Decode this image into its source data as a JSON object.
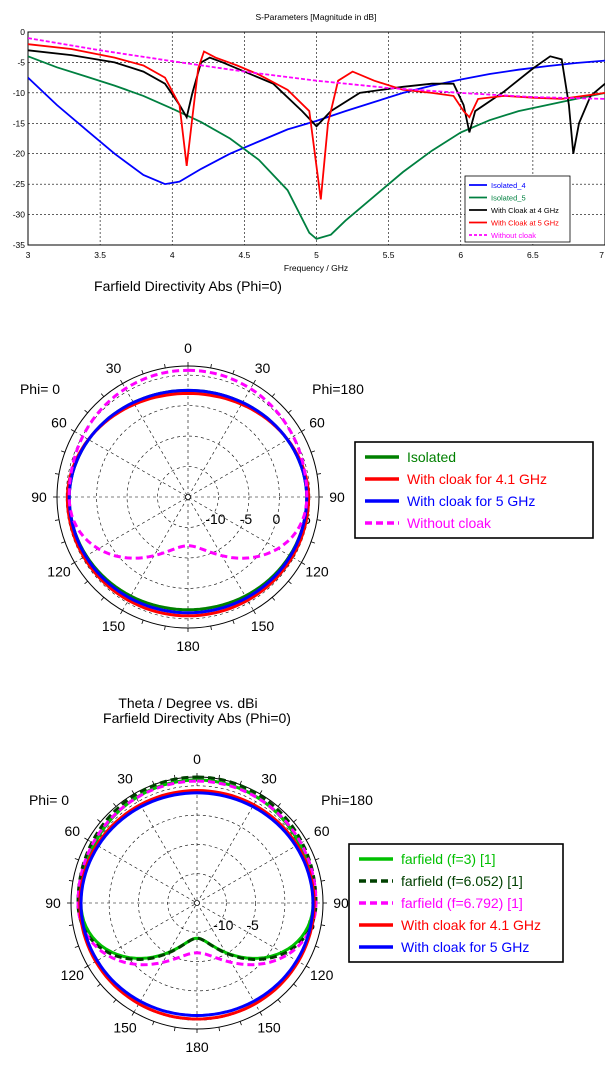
{
  "sparams": {
    "title": "S-Parameters [Magnitude in dB]",
    "xlabel": "Frequency / GHz",
    "chart_data": {
      "type": "line",
      "title": "S-Parameters [Magnitude in dB]",
      "xlabel": "Frequency / GHz",
      "ylabel": "",
      "xlim": [
        3,
        7
      ],
      "ylim": [
        -35,
        0
      ],
      "x_ticks": [
        "3",
        "3.5",
        "4",
        "4.5",
        "5",
        "5.5",
        "6",
        "6.5",
        "7"
      ],
      "y_ticks": [
        "0",
        "-5",
        "-10",
        "-15",
        "-20",
        "-25",
        "-30",
        "-35"
      ],
      "grid": true,
      "legend_position": "bottom-right",
      "series": [
        {
          "name": "Isolated_4",
          "color": "#0000ff",
          "dash": "solid",
          "points": [
            [
              3,
              -7.5
            ],
            [
              3.2,
              -12
            ],
            [
              3.4,
              -16
            ],
            [
              3.6,
              -20
            ],
            [
              3.8,
              -23.5
            ],
            [
              3.95,
              -25
            ],
            [
              4.05,
              -24.6
            ],
            [
              4.2,
              -22.5
            ],
            [
              4.4,
              -20
            ],
            [
              4.6,
              -18
            ],
            [
              4.8,
              -16
            ],
            [
              5.0,
              -14.6
            ],
            [
              5.2,
              -13
            ],
            [
              5.4,
              -11.5
            ],
            [
              5.6,
              -10
            ],
            [
              5.8,
              -8.8
            ],
            [
              6.0,
              -7.8
            ],
            [
              6.2,
              -6.9
            ],
            [
              6.4,
              -6.2
            ],
            [
              6.6,
              -5.6
            ],
            [
              6.8,
              -5.1
            ],
            [
              7.0,
              -4.7
            ]
          ]
        },
        {
          "name": "Isolated_5",
          "color": "#008040",
          "dash": "solid",
          "points": [
            [
              3,
              -4
            ],
            [
              3.2,
              -5.8
            ],
            [
              3.4,
              -7.3
            ],
            [
              3.6,
              -8.8
            ],
            [
              3.8,
              -10.5
            ],
            [
              4.0,
              -12.6
            ],
            [
              4.2,
              -14.8
            ],
            [
              4.4,
              -17.5
            ],
            [
              4.6,
              -21
            ],
            [
              4.8,
              -26
            ],
            [
              4.95,
              -33
            ],
            [
              5.0,
              -34
            ],
            [
              5.1,
              -33.3
            ],
            [
              5.2,
              -31
            ],
            [
              5.4,
              -27
            ],
            [
              5.6,
              -23
            ],
            [
              5.8,
              -19.5
            ],
            [
              6.0,
              -16.5
            ],
            [
              6.2,
              -14.5
            ],
            [
              6.4,
              -13
            ],
            [
              6.6,
              -12
            ],
            [
              6.8,
              -11
            ],
            [
              7.0,
              -10
            ]
          ]
        },
        {
          "name": "With Cloak at 4 GHz",
          "color": "#000000",
          "dash": "solid",
          "points": [
            [
              3,
              -3
            ],
            [
              3.3,
              -3.8
            ],
            [
              3.6,
              -5
            ],
            [
              3.8,
              -6.5
            ],
            [
              3.95,
              -8.5
            ],
            [
              4.05,
              -12
            ],
            [
              4.1,
              -14
            ],
            [
              4.14,
              -10
            ],
            [
              4.2,
              -5
            ],
            [
              4.26,
              -4.2
            ],
            [
              4.35,
              -5
            ],
            [
              4.5,
              -6.5
            ],
            [
              4.7,
              -8.5
            ],
            [
              4.9,
              -13
            ],
            [
              5.0,
              -15.5
            ],
            [
              5.1,
              -13
            ],
            [
              5.3,
              -10
            ],
            [
              5.6,
              -9
            ],
            [
              5.8,
              -8.5
            ],
            [
              5.95,
              -8.5
            ],
            [
              6.02,
              -12
            ],
            [
              6.06,
              -16.5
            ],
            [
              6.1,
              -13
            ],
            [
              6.3,
              -9.8
            ],
            [
              6.5,
              -6
            ],
            [
              6.62,
              -4
            ],
            [
              6.7,
              -4.5
            ],
            [
              6.75,
              -12
            ],
            [
              6.78,
              -20
            ],
            [
              6.82,
              -15
            ],
            [
              6.9,
              -10.5
            ],
            [
              7.0,
              -8.5
            ]
          ]
        },
        {
          "name": "With Cloak at 5 GHz",
          "color": "#ff0000",
          "dash": "solid",
          "points": [
            [
              3,
              -2
            ],
            [
              3.3,
              -2.8
            ],
            [
              3.6,
              -4.2
            ],
            [
              3.8,
              -5.5
            ],
            [
              3.95,
              -7.5
            ],
            [
              4.05,
              -12
            ],
            [
              4.1,
              -22
            ],
            [
              4.14,
              -14
            ],
            [
              4.18,
              -6
            ],
            [
              4.22,
              -3.2
            ],
            [
              4.3,
              -4.2
            ],
            [
              4.45,
              -5.5
            ],
            [
              4.6,
              -7
            ],
            [
              4.8,
              -9.5
            ],
            [
              4.95,
              -13
            ],
            [
              5.03,
              -27.5
            ],
            [
              5.08,
              -15
            ],
            [
              5.15,
              -8
            ],
            [
              5.25,
              -6.5
            ],
            [
              5.4,
              -8
            ],
            [
              5.6,
              -9.5
            ],
            [
              5.8,
              -10
            ],
            [
              5.95,
              -10.5
            ],
            [
              6.02,
              -13
            ],
            [
              6.06,
              -14
            ],
            [
              6.12,
              -11
            ],
            [
              6.3,
              -10.5
            ],
            [
              6.5,
              -10.8
            ],
            [
              6.7,
              -11
            ],
            [
              6.85,
              -10.5
            ],
            [
              7.0,
              -10
            ]
          ]
        },
        {
          "name": "Without cloak",
          "color": "#ff00ff",
          "dash": "dashed",
          "points": [
            [
              3,
              -1
            ],
            [
              3.5,
              -3
            ],
            [
              4.0,
              -4.8
            ],
            [
              4.5,
              -6.5
            ],
            [
              5.0,
              -8
            ],
            [
              5.5,
              -9.2
            ],
            [
              6.0,
              -10
            ],
            [
              6.5,
              -10.7
            ],
            [
              7.0,
              -11
            ]
          ]
        }
      ]
    }
  },
  "polar1": {
    "header": "Farfield Directivity Abs (Phi=0)",
    "footer": "Theta / Degree vs. dBi",
    "phi_left": "Phi= 0",
    "phi_right": "Phi=180",
    "angle_labels": {
      "top": "0",
      "tl": "30",
      "tr": "30",
      "ml": "60",
      "mr": "60",
      "l": "90",
      "r": "90",
      "bl": "120",
      "br": "120",
      "bbl": "150",
      "bbr": "150",
      "bottom": "180"
    },
    "radial_labels": [
      "-10",
      "-5",
      "0",
      "5"
    ],
    "chart_data": {
      "type": "polar",
      "title": "Farfield Directivity Abs (Phi=0)",
      "axis_label": "Theta / Degree vs. dBi",
      "r_ticks": [
        -10,
        -5,
        0,
        5
      ],
      "series": [
        {
          "name": "Isolated",
          "color": "#008000",
          "dash": "solid",
          "r_top": 2.5,
          "r_side": 4.5,
          "r_bottom": 3.5
        },
        {
          "name": "With cloak for 4.1 GHz",
          "color": "#ff0000",
          "dash": "solid",
          "r_top": 2,
          "r_side": 4.8,
          "r_bottom": 4.5
        },
        {
          "name": "With cloak for 5 GHz",
          "color": "#0000ff",
          "dash": "solid",
          "r_top": 2.5,
          "r_side": 4.5,
          "r_bottom": 4
        },
        {
          "name": "Without cloak",
          "color": "#ff00ff",
          "dash": "dashed",
          "r_top": 5.8,
          "r_side": 4.5,
          "r_bottom": -7
        }
      ]
    }
  },
  "polar2": {
    "header": "Farfield Directivity Abs (Phi=0)",
    "footer": "Theta / Degree vs. dBi",
    "phi_left": "Phi= 0",
    "phi_right": "Phi=180",
    "angle_labels": {
      "top": "0",
      "tl": "30",
      "tr": "30",
      "ml": "60",
      "mr": "60",
      "l": "90",
      "r": "90",
      "bl": "120",
      "br": "120",
      "bbl": "150",
      "bbr": "150",
      "bottom": "180"
    },
    "radial_labels": [
      "-10",
      "-5",
      "5"
    ],
    "chart_data": {
      "type": "polar",
      "title": "Farfield Directivity Abs (Phi=0)",
      "axis_label": "Theta / Degree vs. dBi",
      "r_ticks": [
        -10,
        -5,
        0,
        5
      ],
      "series": [
        {
          "name": "farfield (f=3) [1]",
          "color": "#00c000",
          "dash": "solid",
          "r_top": 6,
          "r_side": 4.8,
          "r_bottom": -9
        },
        {
          "name": "farfield (f=6.052) [1]",
          "color": "#004000",
          "dash": "dashed",
          "r_top": 6.5,
          "r_side": 5.3,
          "r_bottom": -9
        },
        {
          "name": "farfield (f=6.792) [1]",
          "color": "#ff00ff",
          "dash": "dashed",
          "r_top": 5.8,
          "r_side": 5.3,
          "r_bottom": -6.5
        },
        {
          "name": "With cloak for 4.1 GHz",
          "color": "#ff0000",
          "dash": "solid",
          "r_top": 4.2,
          "r_side": 5,
          "r_bottom": 4.8
        },
        {
          "name": "With cloak for 5 GHz",
          "color": "#0000ff",
          "dash": "solid",
          "r_top": 3.8,
          "r_side": 4.8,
          "r_bottom": 4.2
        }
      ]
    }
  }
}
